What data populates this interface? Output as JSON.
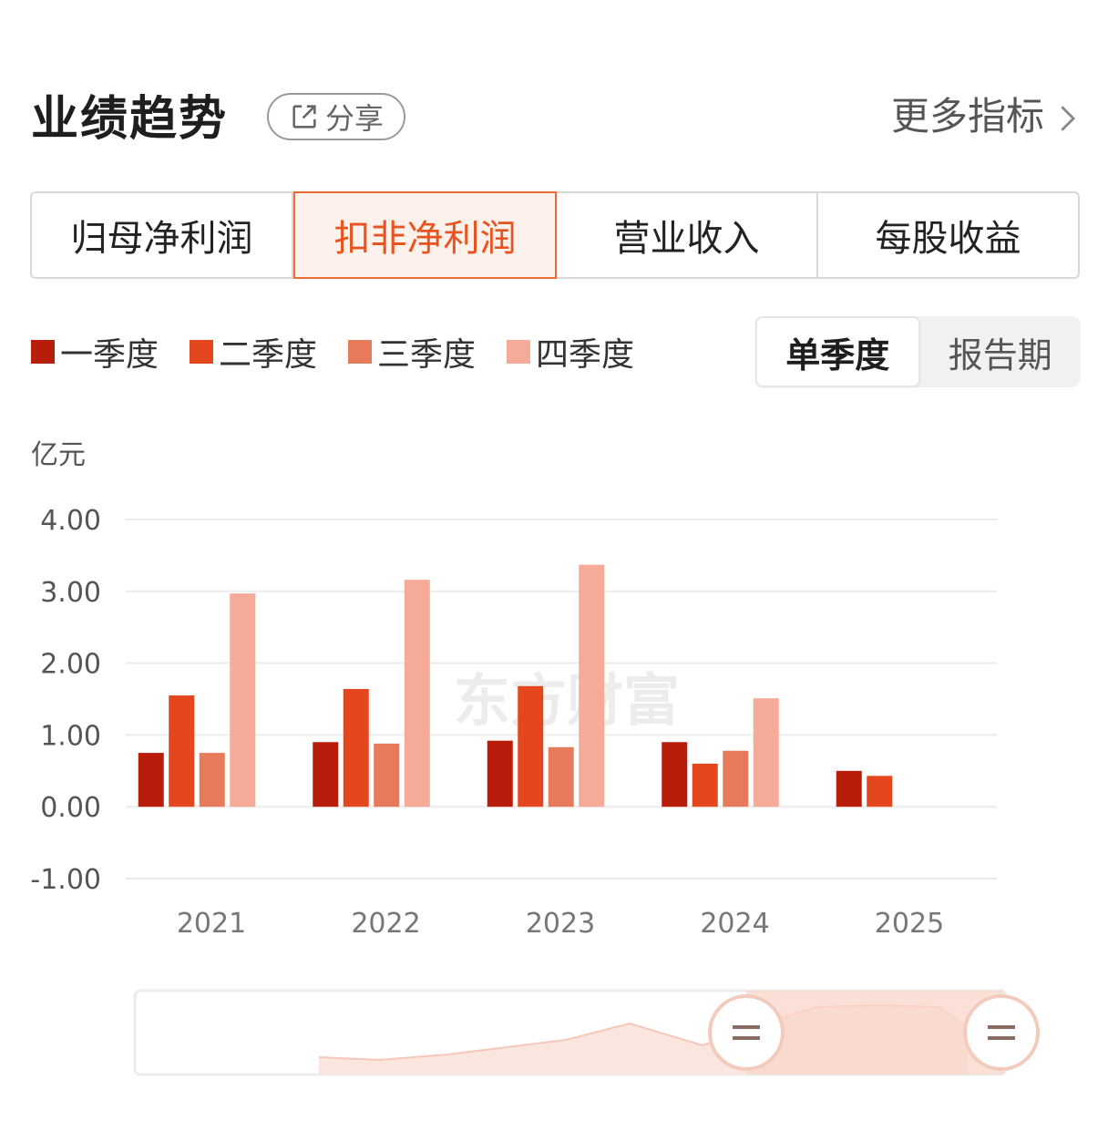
{
  "header": {
    "title": "业绩趋势",
    "share_label": "分享",
    "more_label": "更多指标"
  },
  "tabs": [
    {
      "label": "归母净利润",
      "active": false
    },
    {
      "label": "扣非净利润",
      "active": true
    },
    {
      "label": "营业收入",
      "active": false
    },
    {
      "label": "每股收益",
      "active": false
    }
  ],
  "legend": [
    {
      "label": "一季度",
      "color": "#b81d0c"
    },
    {
      "label": "二季度",
      "color": "#e4461e"
    },
    {
      "label": "三季度",
      "color": "#e87a5c"
    },
    {
      "label": "四季度",
      "color": "#f5ab97"
    }
  ],
  "period_toggle": {
    "options": [
      "单季度",
      "报告期"
    ],
    "selected": "单季度"
  },
  "watermark": "东方财富",
  "chart_data": {
    "type": "bar",
    "unit_label": "亿元",
    "categories": [
      "2021",
      "2022",
      "2023",
      "2024",
      "2025"
    ],
    "series": [
      {
        "name": "一季度",
        "color": "#b81d0c",
        "values": [
          0.75,
          0.9,
          0.92,
          0.9,
          0.5
        ]
      },
      {
        "name": "二季度",
        "color": "#e4461e",
        "values": [
          1.55,
          1.64,
          1.68,
          0.6,
          0.43
        ]
      },
      {
        "name": "三季度",
        "color": "#e87a5c",
        "values": [
          0.75,
          0.88,
          0.83,
          0.78,
          null
        ]
      },
      {
        "name": "四季度",
        "color": "#f5ab97",
        "values": [
          2.97,
          3.16,
          3.37,
          1.51,
          null
        ]
      }
    ],
    "yticks": [
      "4.00",
      "3.00",
      "2.00",
      "1.00",
      "0.00",
      "-1.00"
    ],
    "ylim": [
      -1,
      4
    ],
    "grid": true
  }
}
